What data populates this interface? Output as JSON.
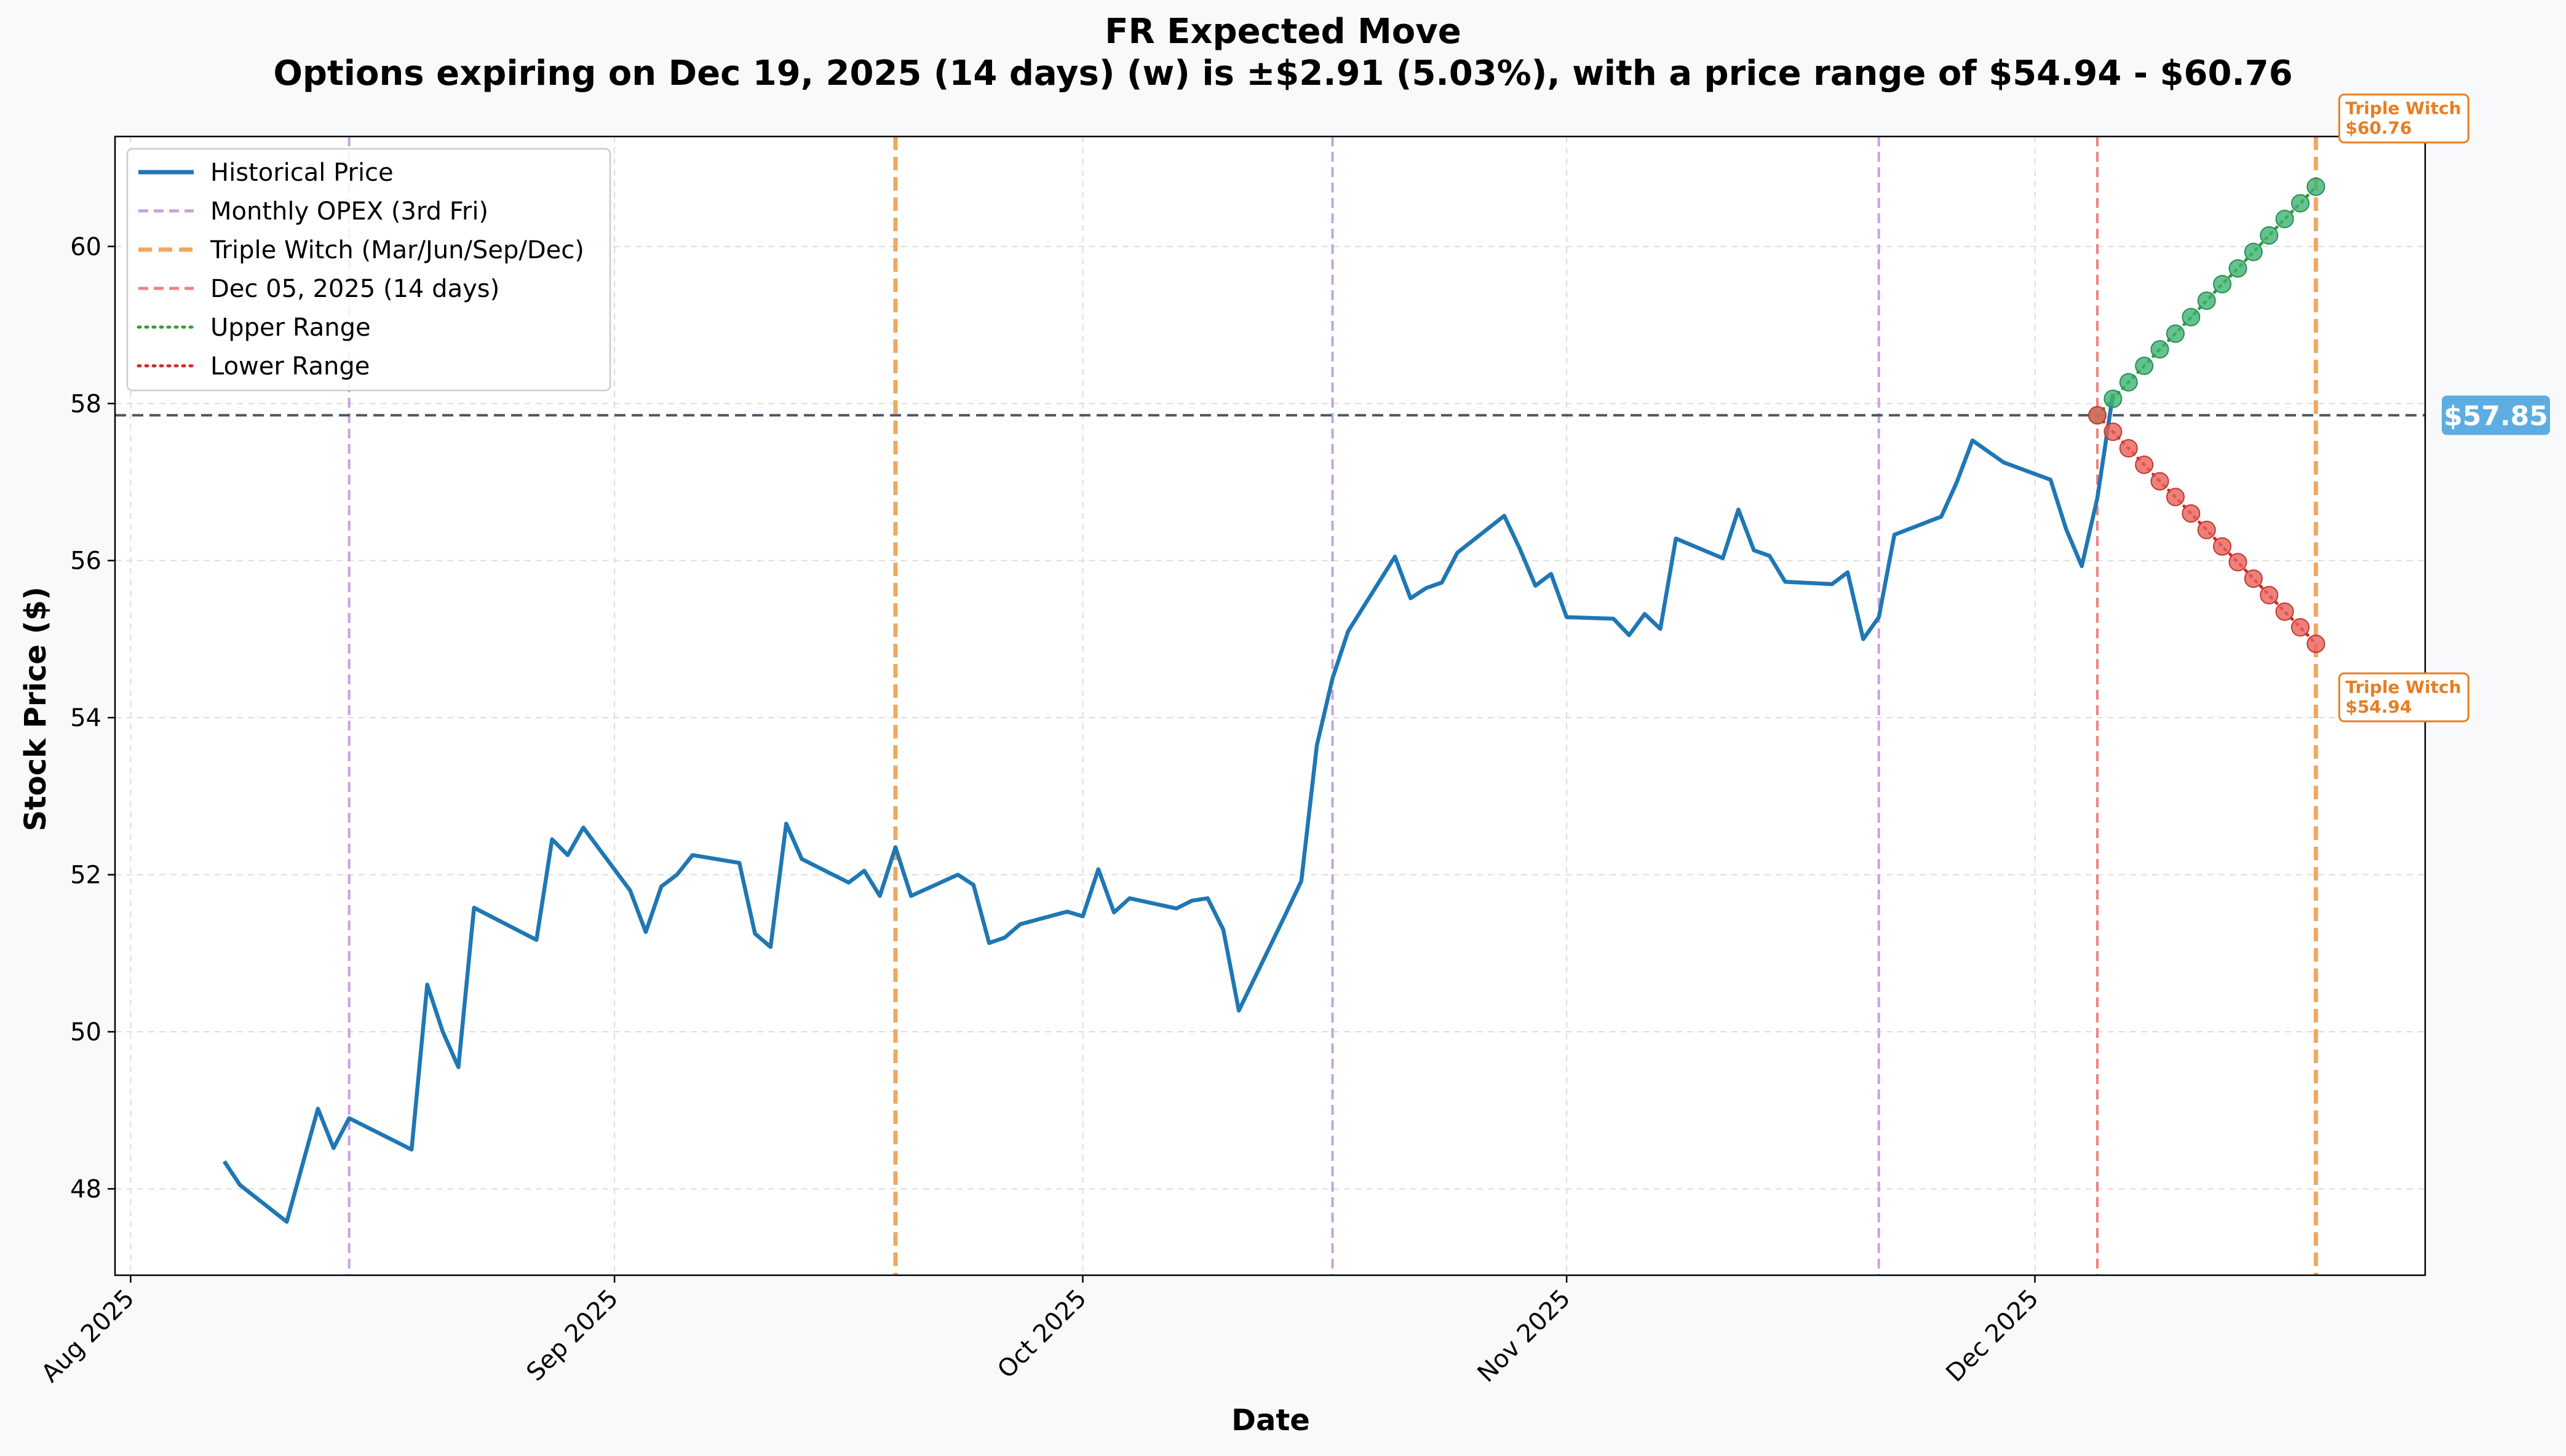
{
  "chart_data": {
    "type": "line",
    "title": "FR Expected Move",
    "subtitle": "Options expiring on Dec 19, 2025 (14 days) (w) is ±$2.91 (5.03%), with a price range of $54.94 - $60.76",
    "xlabel": "Date",
    "ylabel": "Stock Price ($)",
    "xlim": [
      "2025-07-31",
      "2025-12-26"
    ],
    "ylim": [
      46.9,
      61.4
    ],
    "x_ticks": [
      {
        "date": "2025-08-01",
        "label": "Aug 2025"
      },
      {
        "date": "2025-09-01",
        "label": "Sep 2025"
      },
      {
        "date": "2025-10-01",
        "label": "Oct 2025"
      },
      {
        "date": "2025-11-01",
        "label": "Nov 2025"
      },
      {
        "date": "2025-12-01",
        "label": "Dec 2025"
      }
    ],
    "y_ticks": [
      48,
      50,
      52,
      54,
      56,
      58,
      60
    ],
    "grid": true,
    "legend_position": "top-left",
    "legend": [
      {
        "label": "Historical Price",
        "style": "solid",
        "color": "#1f77b4"
      },
      {
        "label": "Monthly OPEX (3rd Fri)",
        "style": "dashed",
        "color": "#c9a0dc"
      },
      {
        "label": "Triple Witch (Mar/Jun/Sep/Dec)",
        "style": "dashed-bold",
        "color": "#f0a860"
      },
      {
        "label": "Dec 05, 2025 (14 days)",
        "style": "dashed",
        "color": "#f08080"
      },
      {
        "label": "Upper Range",
        "style": "dotted",
        "color": "#2ca02c"
      },
      {
        "label": "Lower Range",
        "style": "dotted",
        "color": "#d62728"
      }
    ],
    "historical": [
      [
        "2025-08-07",
        48.35
      ],
      [
        "2025-08-08",
        48.05
      ],
      [
        "2025-08-11",
        47.58
      ],
      [
        "2025-08-13",
        49.02
      ],
      [
        "2025-08-14",
        48.52
      ],
      [
        "2025-08-15",
        48.9
      ],
      [
        "2025-08-19",
        48.5
      ],
      [
        "2025-08-20",
        50.6
      ],
      [
        "2025-08-21",
        50.0
      ],
      [
        "2025-08-22",
        49.55
      ],
      [
        "2025-08-23",
        51.58
      ],
      [
        "2025-08-27",
        51.17
      ],
      [
        "2025-08-28",
        52.45
      ],
      [
        "2025-08-29",
        52.25
      ],
      [
        "2025-08-30",
        52.6
      ],
      [
        "2025-09-02",
        51.8
      ],
      [
        "2025-09-03",
        51.27
      ],
      [
        "2025-09-04",
        51.85
      ],
      [
        "2025-09-05",
        52.0
      ],
      [
        "2025-09-06",
        52.25
      ],
      [
        "2025-09-09",
        52.15
      ],
      [
        "2025-09-10",
        51.25
      ],
      [
        "2025-09-11",
        51.08
      ],
      [
        "2025-09-12",
        52.65
      ],
      [
        "2025-09-13",
        52.2
      ],
      [
        "2025-09-16",
        51.9
      ],
      [
        "2025-09-17",
        52.05
      ],
      [
        "2025-09-18",
        51.73
      ],
      [
        "2025-09-19",
        52.35
      ],
      [
        "2025-09-20",
        51.73
      ],
      [
        "2025-09-23",
        52.0
      ],
      [
        "2025-09-24",
        51.87
      ],
      [
        "2025-09-25",
        51.13
      ],
      [
        "2025-09-26",
        51.2
      ],
      [
        "2025-09-27",
        51.37
      ],
      [
        "2025-09-30",
        51.53
      ],
      [
        "2025-10-01",
        51.47
      ],
      [
        "2025-10-02",
        52.07
      ],
      [
        "2025-10-03",
        51.52
      ],
      [
        "2025-10-04",
        51.7
      ],
      [
        "2025-10-07",
        51.57
      ],
      [
        "2025-10-08",
        51.67
      ],
      [
        "2025-10-09",
        51.7
      ],
      [
        "2025-10-10",
        51.3
      ],
      [
        "2025-10-11",
        50.27
      ],
      [
        "2025-10-14",
        51.5
      ],
      [
        "2025-10-15",
        51.92
      ],
      [
        "2025-10-16",
        53.65
      ],
      [
        "2025-10-17",
        54.5
      ],
      [
        "2025-10-18",
        55.1
      ],
      [
        "2025-10-21",
        56.05
      ],
      [
        "2025-10-22",
        55.52
      ],
      [
        "2025-10-23",
        55.65
      ],
      [
        "2025-10-24",
        55.72
      ],
      [
        "2025-10-25",
        56.1
      ],
      [
        "2025-10-28",
        56.57
      ],
      [
        "2025-10-29",
        56.15
      ],
      [
        "2025-10-30",
        55.68
      ],
      [
        "2025-10-31",
        55.83
      ],
      [
        "2025-11-01",
        55.28
      ],
      [
        "2025-11-04",
        55.26
      ],
      [
        "2025-11-05",
        55.05
      ],
      [
        "2025-11-06",
        55.32
      ],
      [
        "2025-11-07",
        55.13
      ],
      [
        "2025-11-08",
        56.28
      ],
      [
        "2025-11-11",
        56.03
      ],
      [
        "2025-11-12",
        56.65
      ],
      [
        "2025-11-13",
        56.13
      ],
      [
        "2025-11-14",
        56.06
      ],
      [
        "2025-11-15",
        55.73
      ],
      [
        "2025-11-18",
        55.7
      ],
      [
        "2025-11-19",
        55.85
      ],
      [
        "2025-11-20",
        55.0
      ],
      [
        "2025-11-21",
        55.28
      ],
      [
        "2025-11-22",
        56.33
      ],
      [
        "2025-11-25",
        56.56
      ],
      [
        "2025-11-26",
        57.0
      ],
      [
        "2025-11-27",
        57.53
      ],
      [
        "2025-11-29",
        57.25
      ],
      [
        "2025-12-02",
        57.03
      ],
      [
        "2025-12-03",
        56.4
      ],
      [
        "2025-12-04",
        55.93
      ],
      [
        "2025-12-05",
        56.8
      ],
      [
        "2025-12-06",
        58.12
      ]
    ],
    "upper_range": [
      [
        "2025-12-05",
        57.85
      ],
      [
        "2025-12-06",
        58.06
      ],
      [
        "2025-12-07",
        58.27
      ],
      [
        "2025-12-08",
        58.48
      ],
      [
        "2025-12-09",
        58.69
      ],
      [
        "2025-12-10",
        58.89
      ],
      [
        "2025-12-11",
        59.1
      ],
      [
        "2025-12-12",
        59.31
      ],
      [
        "2025-12-13",
        59.52
      ],
      [
        "2025-12-14",
        59.72
      ],
      [
        "2025-12-15",
        59.93
      ],
      [
        "2025-12-16",
        60.14
      ],
      [
        "2025-12-17",
        60.35
      ],
      [
        "2025-12-18",
        60.55
      ],
      [
        "2025-12-19",
        60.76
      ]
    ],
    "lower_range": [
      [
        "2025-12-05",
        57.85
      ],
      [
        "2025-12-06",
        57.64
      ],
      [
        "2025-12-07",
        57.43
      ],
      [
        "2025-12-08",
        57.22
      ],
      [
        "2025-12-09",
        57.01
      ],
      [
        "2025-12-10",
        56.81
      ],
      [
        "2025-12-11",
        56.6
      ],
      [
        "2025-12-12",
        56.39
      ],
      [
        "2025-12-13",
        56.18
      ],
      [
        "2025-12-14",
        55.98
      ],
      [
        "2025-12-15",
        55.77
      ],
      [
        "2025-12-16",
        55.56
      ],
      [
        "2025-12-17",
        55.35
      ],
      [
        "2025-12-18",
        55.15
      ],
      [
        "2025-12-19",
        54.94
      ]
    ],
    "current_price": 57.85,
    "current_price_label": "$57.85",
    "monthly_opex": [
      "2025-08-15",
      "2025-10-17",
      "2025-11-21"
    ],
    "triple_witch": [
      "2025-09-19",
      "2025-12-19"
    ],
    "today_line": "2025-12-05",
    "annotations": [
      {
        "line1": "Triple Witch",
        "line2": "$60.76",
        "x": "2025-12-19",
        "y": 60.76,
        "position": "above-right"
      },
      {
        "line1": "Triple Witch",
        "line2": "$54.94",
        "x": "2025-12-19",
        "y": 54.94,
        "position": "below-right"
      }
    ],
    "colors": {
      "historical": "#1f77b4",
      "upper": "#2ca02c",
      "upper_marker": "#3cb371",
      "lower": "#d62728",
      "lower_marker": "#e8605a",
      "opex": "#c9a0dc",
      "triple_witch": "#f0a860",
      "today": "#f08080",
      "current_price_line": "#4a5568",
      "current_price_badge": "#5dade2",
      "annotation": "#e67e22"
    }
  }
}
